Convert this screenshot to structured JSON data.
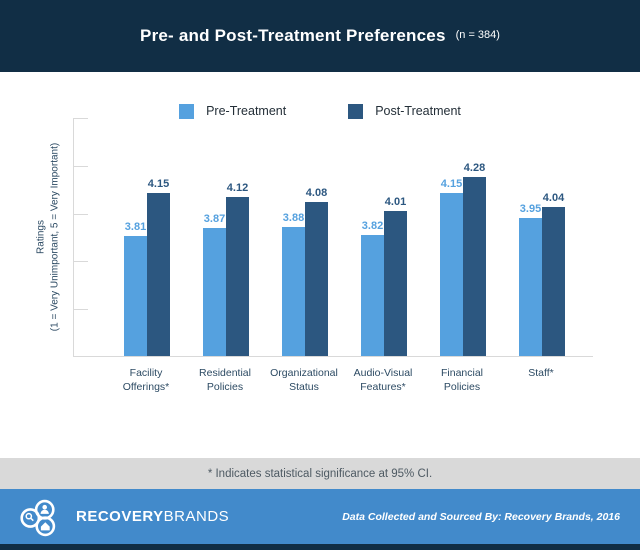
{
  "header": {
    "title": "Pre- and Post-Treatment Preferences",
    "sample_size": "(n = 384)"
  },
  "y_axis": {
    "title_line1": "Ratings",
    "title_line2": "(1 = Very Unimportant, 5 = Very Important)"
  },
  "chart_data": {
    "type": "bar",
    "title": "Pre- and Post-Treatment Preferences",
    "subtitle": "(n = 384)",
    "categories": [
      "Facility Offerings*",
      "Residential Policies",
      "Organizational Status",
      "Audio-Visual Features*",
      "Financial Policies",
      "Staff*"
    ],
    "category_label_lines": [
      [
        "Facility",
        "Offerings*"
      ],
      [
        "Residential",
        "Policies"
      ],
      [
        "Organizational",
        "Status"
      ],
      [
        "Audio-Visual",
        "Features*"
      ],
      [
        "Financial",
        "Policies"
      ],
      [
        "Staff*"
      ]
    ],
    "series": [
      {
        "name": "Pre-Treatment",
        "color": "#55A1DF",
        "values": [
          3.81,
          3.87,
          3.88,
          3.82,
          4.15,
          3.95
        ]
      },
      {
        "name": "Post-Treatment",
        "color": "#2C5780",
        "values": [
          4.15,
          4.12,
          4.08,
          4.01,
          4.28,
          4.04
        ]
      }
    ],
    "xlabel": "",
    "ylabel": "Ratings (1 = Very Unimportant, 5 = Very Important)",
    "ylim": [
      2.85,
      4.75
    ],
    "y_tick_count": 6,
    "grid": false,
    "legend_position": "top",
    "bar_value_labels": true
  },
  "footnote": "* Indicates statistical significance at 95% CI.",
  "footer": {
    "brand_bold": "RECOVERY",
    "brand_light": "BRANDS",
    "source": "Data Collected and Sourced By: Recovery Brands, 2016"
  },
  "icons": {
    "logo": "recovery-brands-logo (magnifier, person, house circles)"
  },
  "colors": {
    "header_bg": "#112E45",
    "pre_bar": "#55A1DF",
    "post_bar": "#2C5780",
    "axis_line": "#D9D9D9",
    "label_navy": "#2C4A63",
    "note_band_bg": "#D9D9D9",
    "note_text": "#4E5A63",
    "footer_bg": "#428ACB",
    "bottom_strip_bg": "#112E45"
  }
}
